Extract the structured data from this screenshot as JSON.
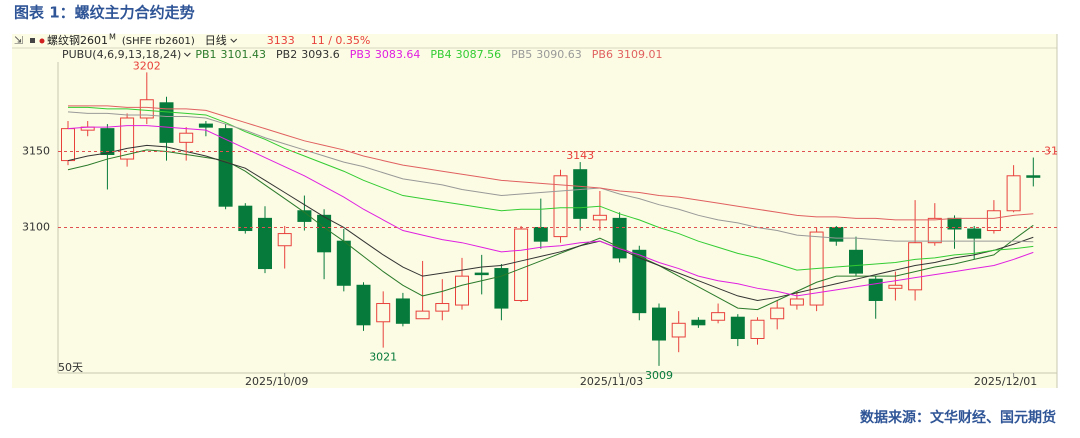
{
  "chart_data": {
    "type": "candlestick",
    "title": "图表 1：螺纹主力合约走势",
    "symbol": "螺纹钢2601",
    "symbol_mark": "M",
    "contract": "(SHFE rb2601)",
    "period": "日线",
    "change_label": "11 / 0.35%",
    "indicator": "PUBU(4,6,9,13,18,24)",
    "range_label": "50天",
    "source": "数据来源：文华财经、国元期货",
    "categories": [
      null,
      null,
      null,
      null,
      null,
      null,
      null,
      null,
      null,
      null,
      null,
      "2025/10/09",
      null,
      null,
      null,
      null,
      null,
      null,
      null,
      null,
      null,
      null,
      null,
      null,
      null,
      null,
      null,
      null,
      "2025/11/03",
      null,
      null,
      null,
      null,
      null,
      null,
      null,
      null,
      null,
      null,
      null,
      null,
      null,
      null,
      null,
      null,
      null,
      null,
      null,
      "2025/12/01",
      null
    ],
    "open": [
      3144,
      3164,
      3165,
      3145,
      3172,
      3182,
      3156,
      3168,
      3165,
      3114,
      3106,
      3088,
      3111,
      3108,
      3091,
      3062,
      3038,
      3053,
      3040,
      3045,
      3049,
      3070,
      3073,
      3052,
      3100,
      3094,
      3138,
      3105,
      3106,
      3085,
      3047,
      3028,
      3039,
      3039,
      3041,
      3027,
      3040,
      3049,
      3049,
      3100,
      3085,
      3066,
      3060,
      3059,
      3090,
      3106,
      3099,
      3098,
      3111,
      3134
    ],
    "high": [
      3170,
      3170,
      3168,
      3175,
      3202,
      3186,
      3166,
      3170,
      3168,
      3116,
      3114,
      3101,
      3121,
      3112,
      3099,
      3064,
      3058,
      3057,
      3078,
      3066,
      3080,
      3082,
      3076,
      3101,
      3119,
      3138,
      3143,
      3124,
      3110,
      3088,
      3050,
      3045,
      3041,
      3050,
      3043,
      3041,
      3052,
      3058,
      3100,
      3101,
      3094,
      3068,
      3071,
      3118,
      3116,
      3108,
      3101,
      3118,
      3141,
      3146
    ],
    "low": [
      3141,
      3160,
      3125,
      3140,
      3168,
      3144,
      3144,
      3160,
      3112,
      3096,
      3070,
      3073,
      3098,
      3066,
      3058,
      3032,
      3021,
      3035,
      3040,
      3039,
      3046,
      3056,
      3039,
      3051,
      3086,
      3090,
      3098,
      3098,
      3077,
      3039,
      3009,
      3018,
      3034,
      3037,
      3022,
      3023,
      3033,
      3046,
      3045,
      3088,
      3068,
      3040,
      3052,
      3052,
      3088,
      3086,
      3079,
      3096,
      3110,
      3127
    ],
    "close": [
      3165,
      3166,
      3148,
      3172,
      3184,
      3156,
      3162,
      3166,
      3114,
      3098,
      3073,
      3096,
      3104,
      3084,
      3062,
      3036,
      3050,
      3037,
      3045,
      3050,
      3068,
      3069,
      3047,
      3099,
      3091,
      3134,
      3106,
      3108,
      3080,
      3044,
      3026,
      3037,
      3036,
      3044,
      3027,
      3039,
      3047,
      3053,
      3097,
      3091,
      3070,
      3052,
      3062,
      3090,
      3106,
      3099,
      3093,
      3111,
      3134,
      3133
    ],
    "up_color": "#e8413c",
    "down_color": "#067a3a",
    "series": [
      {
        "name": "PB1",
        "color": "#2b7a2b",
        "values": [
          3138,
          3141,
          3145,
          3148,
          3151,
          3150,
          3148,
          3146,
          3144,
          3137,
          3128,
          3119,
          3110,
          3100,
          3091,
          3081,
          3071,
          3062,
          3055,
          3058,
          3062,
          3065,
          3068,
          3073,
          3078,
          3083,
          3088,
          3093,
          3087,
          3081,
          3075,
          3068,
          3061,
          3054,
          3047,
          3046,
          3052,
          3058,
          3064,
          3068,
          3068,
          3068,
          3068,
          3071,
          3074,
          3076,
          3079,
          3082,
          3092,
          3101.43
        ]
      },
      {
        "name": "PB2",
        "color": "#333333",
        "values": [
          3144,
          3147,
          3149,
          3152,
          3154,
          3153,
          3150,
          3147,
          3143,
          3139,
          3131,
          3123,
          3115,
          3107,
          3100,
          3091,
          3082,
          3074,
          3068,
          3070,
          3072,
          3074,
          3075,
          3078,
          3081,
          3084,
          3088,
          3091,
          3086,
          3080,
          3075,
          3070,
          3065,
          3060,
          3055,
          3052,
          3054,
          3057,
          3060,
          3063,
          3066,
          3069,
          3072,
          3075,
          3077,
          3080,
          3082,
          3085,
          3089,
          3093.6
        ]
      },
      {
        "name": "PB3",
        "color": "#e020e0",
        "values": [
          3165,
          3166,
          3166,
          3167,
          3167,
          3166,
          3165,
          3164,
          3158,
          3152,
          3146,
          3140,
          3134,
          3127,
          3120,
          3112,
          3105,
          3098,
          3095,
          3092,
          3090,
          3087,
          3084,
          3085,
          3087,
          3088,
          3090,
          3091,
          3086,
          3082,
          3077,
          3073,
          3068,
          3065,
          3063,
          3060,
          3058,
          3055,
          3057,
          3059,
          3061,
          3063,
          3065,
          3067,
          3069,
          3071,
          3073,
          3075,
          3079,
          3083.64
        ]
      },
      {
        "name": "PB4",
        "color": "#33cc33",
        "values": [
          3179,
          3179,
          3178,
          3178,
          3177,
          3176,
          3175,
          3174,
          3169,
          3163,
          3158,
          3152,
          3147,
          3142,
          3137,
          3131,
          3126,
          3121,
          3119,
          3117,
          3115,
          3113,
          3111,
          3112,
          3112,
          3113,
          3113,
          3114,
          3109,
          3105,
          3100,
          3096,
          3091,
          3087,
          3083,
          3080,
          3076,
          3072,
          3073,
          3074,
          3075,
          3076,
          3077,
          3079,
          3080,
          3082,
          3083,
          3085,
          3086,
          3087.56
        ]
      },
      {
        "name": "PB5",
        "color": "#999999",
        "values": [
          3176,
          3175,
          3175,
          3174,
          3174,
          3173,
          3173,
          3172,
          3168,
          3164,
          3159,
          3155,
          3151,
          3147,
          3143,
          3140,
          3136,
          3132,
          3130,
          3128,
          3125,
          3123,
          3121,
          3122,
          3123,
          3124,
          3125,
          3126,
          3122,
          3119,
          3115,
          3112,
          3108,
          3105,
          3103,
          3100,
          3098,
          3095,
          3094,
          3093,
          3093,
          3092,
          3091,
          3091,
          3091,
          3091,
          3091,
          3091,
          3091,
          3090.63
        ]
      },
      {
        "name": "PB6",
        "color": "#e06060",
        "values": [
          3180,
          3180,
          3180,
          3179,
          3179,
          3178,
          3178,
          3177,
          3173,
          3169,
          3165,
          3161,
          3157,
          3154,
          3151,
          3147,
          3144,
          3141,
          3139,
          3137,
          3135,
          3133,
          3131,
          3130,
          3129,
          3128,
          3127,
          3126,
          3124,
          3123,
          3121,
          3120,
          3118,
          3116,
          3114,
          3112,
          3110,
          3108,
          3107,
          3107,
          3106,
          3106,
          3105,
          3105,
          3105,
          3106,
          3106,
          3106,
          3108,
          3109.01
        ]
      }
    ],
    "ylim": [
      3003,
      3220
    ],
    "yticks": [
      3150,
      3100
    ],
    "grid_color": "#e05050",
    "background": "#fcfce4"
  }
}
